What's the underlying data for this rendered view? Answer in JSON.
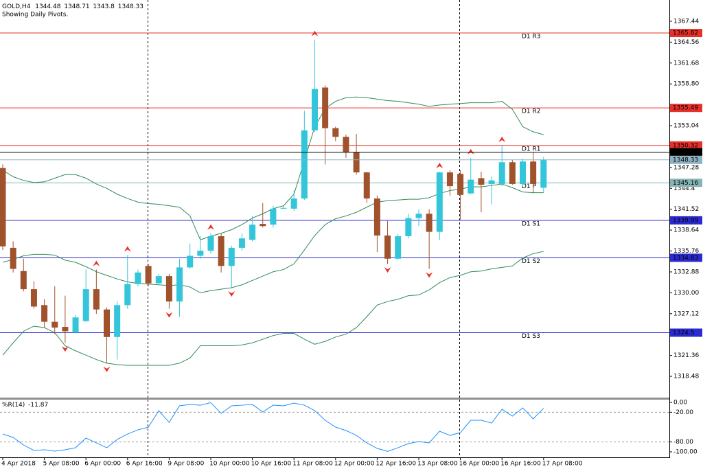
{
  "chart_data": {
    "type": "candlestick",
    "symbol": "GOLD,H4",
    "subtitle": "Showing Daily Pivots.",
    "bull_color": "#33c6da",
    "bear_color": "#a0522d",
    "ylim": [
      1315.55,
      1370.37
    ],
    "yticks": [
      1367.44,
      1364.56,
      1361.68,
      {
        "value": 1358.8,
        "label": "1358.80"
      },
      1353.04,
      1347.28,
      1344.4,
      1341.52,
      1338.64,
      1335.76,
      1332.88,
      {
        "value": 1330.0,
        "label": "1330.00"
      },
      1327.12,
      1321.36,
      1318.48
    ],
    "categories": [
      "4 Apr 2018",
      null,
      null,
      null,
      "5 Apr 08:00",
      null,
      null,
      null,
      "6 Apr 00:00",
      null,
      null,
      null,
      "6 Apr 16:00",
      null,
      null,
      null,
      "9 Apr 08:00",
      null,
      null,
      null,
      "10 Apr 00:00",
      null,
      null,
      null,
      "10 Apr 16:00",
      null,
      null,
      null,
      "11 Apr 08:00",
      null,
      null,
      null,
      "12 Apr 00:00",
      null,
      null,
      null,
      "12 Apr 16:00",
      null,
      null,
      null,
      "13 Apr 08:00",
      null,
      null,
      null,
      "16 Apr 00:00",
      null,
      null,
      null,
      "16 Apr 16:00",
      null,
      null,
      null,
      "17 Apr 08:00"
    ],
    "candles": [
      {
        "open": 1347.2,
        "high": 1347.7,
        "low": 1335.9,
        "close": 1336.4
      },
      {
        "open": 1336.2,
        "high": 1337.1,
        "low": 1332.8,
        "close": 1333.3
      },
      {
        "open": 1333.0,
        "high": 1334.7,
        "low": 1330.2,
        "close": 1330.5
      },
      {
        "open": 1330.5,
        "high": 1331.6,
        "low": 1327.8,
        "close": 1328.1
      },
      {
        "open": 1328.3,
        "high": 1329.1,
        "low": 1325.2,
        "close": 1326.0
      },
      {
        "open": 1326.0,
        "high": 1330.9,
        "low": 1324.3,
        "close": 1325.2
      },
      {
        "open": 1325.3,
        "high": 1329.6,
        "low": 1323.1,
        "close": 1324.7
      },
      {
        "open": 1324.5,
        "high": 1326.9,
        "low": 1324.4,
        "close": 1326.6
      },
      {
        "open": 1326.1,
        "high": 1333.2,
        "low": 1326.0,
        "close": 1330.5
      },
      {
        "open": 1330.5,
        "high": 1333.2,
        "low": 1327.1,
        "close": 1327.7
      },
      {
        "open": 1327.7,
        "high": 1328.0,
        "low": 1320.3,
        "close": 1323.9
      },
      {
        "open": 1323.9,
        "high": 1328.8,
        "low": 1320.8,
        "close": 1328.3
      },
      {
        "open": 1328.3,
        "high": 1335.2,
        "low": 1327.8,
        "close": 1331.2
      },
      {
        "open": 1331.2,
        "high": 1333.2,
        "low": 1330.9,
        "close": 1332.8
      },
      {
        "open": 1333.7,
        "high": 1334.0,
        "low": 1330.9,
        "close": 1331.3
      },
      {
        "open": 1331.3,
        "high": 1332.6,
        "low": 1331.2,
        "close": 1332.3
      },
      {
        "open": 1332.3,
        "high": 1332.6,
        "low": 1327.8,
        "close": 1328.8
      },
      {
        "open": 1328.8,
        "high": 1334.7,
        "low": 1326.7,
        "close": 1333.5
      },
      {
        "open": 1333.5,
        "high": 1336.8,
        "low": 1333.3,
        "close": 1335.1
      },
      {
        "open": 1335.1,
        "high": 1337.8,
        "low": 1334.7,
        "close": 1335.8
      },
      {
        "open": 1335.8,
        "high": 1338.2,
        "low": 1335.4,
        "close": 1337.8
      },
      {
        "open": 1337.8,
        "high": 1338.2,
        "low": 1332.8,
        "close": 1333.7
      },
      {
        "open": 1333.7,
        "high": 1336.5,
        "low": 1330.7,
        "close": 1336.2
      },
      {
        "open": 1336.2,
        "high": 1338.2,
        "low": 1335.8,
        "close": 1337.5
      },
      {
        "open": 1337.3,
        "high": 1340.6,
        "low": 1337.1,
        "close": 1339.4
      },
      {
        "open": 1339.5,
        "high": 1342.4,
        "low": 1339.0,
        "close": 1339.2
      },
      {
        "open": 1339.4,
        "high": 1342.0,
        "low": 1339.0,
        "close": 1341.6
      },
      {
        "open": 1341.6,
        "high": 1342.0,
        "low": 1341.5,
        "close": 1341.7
      },
      {
        "open": 1341.6,
        "high": 1344.1,
        "low": 1341.3,
        "close": 1343.0
      },
      {
        "open": 1343.0,
        "high": 1355.1,
        "low": 1342.8,
        "close": 1352.4
      },
      {
        "open": 1352.4,
        "high": 1364.9,
        "low": 1352.2,
        "close": 1358.1
      },
      {
        "open": 1358.3,
        "high": 1358.6,
        "low": 1347.7,
        "close": 1352.7
      },
      {
        "open": 1352.7,
        "high": 1352.9,
        "low": 1350.9,
        "close": 1351.5
      },
      {
        "open": 1351.5,
        "high": 1351.8,
        "low": 1348.6,
        "close": 1349.4
      },
      {
        "open": 1349.4,
        "high": 1351.9,
        "low": 1346.3,
        "close": 1346.6
      },
      {
        "open": 1346.6,
        "high": 1346.7,
        "low": 1342.4,
        "close": 1343.0
      },
      {
        "open": 1343.0,
        "high": 1343.4,
        "low": 1335.6,
        "close": 1337.9
      },
      {
        "open": 1337.9,
        "high": 1339.9,
        "low": 1334.0,
        "close": 1334.7
      },
      {
        "open": 1334.7,
        "high": 1338.1,
        "low": 1334.5,
        "close": 1337.8
      },
      {
        "open": 1337.8,
        "high": 1340.9,
        "low": 1337.5,
        "close": 1340.3
      },
      {
        "open": 1340.3,
        "high": 1341.5,
        "low": 1339.2,
        "close": 1340.9
      },
      {
        "open": 1340.9,
        "high": 1341.5,
        "low": 1333.3,
        "close": 1338.4
      },
      {
        "open": 1338.4,
        "high": 1346.7,
        "low": 1337.3,
        "close": 1346.6
      },
      {
        "open": 1346.6,
        "high": 1346.9,
        "low": 1343.4,
        "close": 1344.7
      },
      {
        "open": 1346.4,
        "high": 1346.9,
        "low": 1340.1,
        "close": 1343.5
      },
      {
        "open": 1343.7,
        "high": 1348.6,
        "low": 1343.6,
        "close": 1345.6
      },
      {
        "open": 1345.8,
        "high": 1346.7,
        "low": 1341.1,
        "close": 1344.9
      },
      {
        "open": 1345.0,
        "high": 1346.0,
        "low": 1342.2,
        "close": 1345.5
      },
      {
        "open": 1345.0,
        "high": 1350.3,
        "low": 1344.7,
        "close": 1348.0
      },
      {
        "open": 1348.0,
        "high": 1348.3,
        "low": 1344.9,
        "close": 1345.0
      },
      {
        "open": 1345.0,
        "high": 1348.5,
        "low": 1344.7,
        "close": 1348.1
      },
      {
        "open": 1348.1,
        "high": 1349.4,
        "low": 1343.7,
        "close": 1345.0
      },
      {
        "open": 1344.48,
        "high": 1348.71,
        "low": 1343.8,
        "close": 1348.33
      }
    ],
    "bands": {
      "color": "#2e8b57",
      "upper": [
        1346.9,
        1346.0,
        1345.5,
        1345.2,
        1345.3,
        1345.8,
        1346.3,
        1346.3,
        1345.8,
        1345.0,
        1344.4,
        1343.6,
        1343.0,
        1342.5,
        1342.3,
        1342.2,
        1342.0,
        1341.8,
        1340.6,
        1337.3,
        1337.8,
        1338.2,
        1338.7,
        1339.4,
        1340.3,
        1340.9,
        1341.6,
        1342.0,
        1343.6,
        1348.2,
        1352.9,
        1355.4,
        1356.4,
        1356.9,
        1357.0,
        1356.9,
        1356.7,
        1356.5,
        1356.4,
        1356.2,
        1356.0,
        1355.7,
        1355.9,
        1356.0,
        1356.1,
        1356.2,
        1356.2,
        1356.2,
        1356.4,
        1355.3,
        1352.9,
        1352.2,
        1351.8
      ],
      "middle": [
        1334.2,
        1334.6,
        1335.1,
        1335.3,
        1335.3,
        1335.2,
        1334.5,
        1334.2,
        1333.6,
        1332.9,
        1332.4,
        1331.9,
        1331.5,
        1331.3,
        1331.2,
        1331.1,
        1331.0,
        1331.1,
        1330.8,
        1330.0,
        1330.3,
        1330.5,
        1330.7,
        1331.1,
        1331.7,
        1332.3,
        1332.9,
        1333.2,
        1334.0,
        1335.9,
        1337.9,
        1339.4,
        1340.2,
        1340.6,
        1341.1,
        1341.8,
        1342.5,
        1342.7,
        1342.8,
        1342.9,
        1342.9,
        1343.1,
        1343.7,
        1344.1,
        1344.3,
        1344.6,
        1344.6,
        1344.8,
        1345.0,
        1344.5,
        1343.9,
        1343.8,
        1343.8
      ],
      "lower": [
        1321.4,
        1323.1,
        1324.7,
        1325.4,
        1325.2,
        1324.5,
        1322.7,
        1322.0,
        1321.4,
        1320.8,
        1320.3,
        1320.1,
        1320.0,
        1320.0,
        1320.0,
        1320.0,
        1320.0,
        1320.3,
        1321.0,
        1322.7,
        1322.7,
        1322.7,
        1322.7,
        1322.8,
        1323.1,
        1323.6,
        1324.1,
        1324.4,
        1324.4,
        1323.6,
        1322.9,
        1323.3,
        1323.9,
        1324.3,
        1325.2,
        1326.7,
        1328.3,
        1328.8,
        1329.1,
        1329.6,
        1329.7,
        1330.4,
        1331.4,
        1332.1,
        1332.4,
        1332.9,
        1333.0,
        1333.3,
        1333.5,
        1333.7,
        1334.8,
        1335.4,
        1335.7
      ]
    },
    "fractal_color": "#e8302a",
    "fractals_up": [
      9,
      12,
      20,
      30,
      42,
      45,
      48
    ],
    "fractals_down": [
      6,
      10,
      16,
      22,
      37,
      41
    ],
    "pivots": [
      {
        "name": "D1 R3",
        "value": 1365.82,
        "color": "#e8302a"
      },
      {
        "name": "D1 R2",
        "value": 1355.49,
        "color": "#e8302a"
      },
      {
        "name": "D1 R1",
        "value": 1350.32,
        "color": "#e8302a"
      },
      {
        "name": "D1 P",
        "value": 1345.16,
        "color": "#86b4b4"
      },
      {
        "name": "D1 S1",
        "value": 1339.99,
        "color": "#2a2ad0"
      },
      {
        "name": "D1 S2",
        "value": 1334.83,
        "color": "#2a2ad0"
      },
      {
        "name": "D1 S3",
        "value": 1324.5,
        "color": "#2a2ad0"
      }
    ],
    "ask": 1349.37,
    "ask_color": "#000000",
    "bid_color": "#8fb0c2",
    "indicator": {
      "name": "%R(14)",
      "color": "#1e90ff",
      "ylim": [
        -111.1,
        5.6
      ],
      "yticks": [
        {
          "value": 0,
          "label": "0.00"
        },
        {
          "value": -20,
          "label": "-20.00"
        },
        {
          "value": -80,
          "label": "-80.00"
        },
        {
          "value": -100,
          "label": "-100.00"
        }
      ],
      "levels": [
        -20,
        -80
      ],
      "values": [
        -63.9,
        -70.8,
        -86.1,
        -97.2,
        -95.8,
        -98.6,
        -95.8,
        -91.7,
        -72.2,
        -81.9,
        -91.7,
        -75.0,
        -63.9,
        -55.6,
        -50.0,
        -16.7,
        -40.3,
        -6.9,
        -4.2,
        -5.6,
        -0.5,
        -22.2,
        -6.9,
        -5.6,
        -4.2,
        -19.4,
        -5.6,
        -6.9,
        -1.4,
        -5.6,
        -16.7,
        -36.1,
        -50.0,
        -56.9,
        -66.7,
        -81.9,
        -93.1,
        -99.0,
        -91.7,
        -83.3,
        -79.2,
        -81.9,
        -58.3,
        -66.7,
        -61.1,
        -36.1,
        -36.1,
        -41.7,
        -13.9,
        -27.8,
        -11.1,
        -33.3,
        -11.87
      ]
    }
  }
}
